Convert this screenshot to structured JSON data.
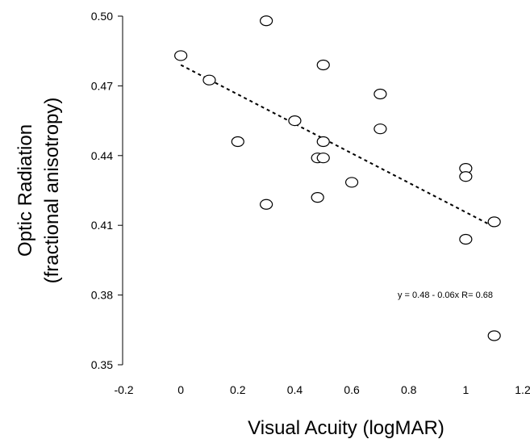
{
  "chart_data": {
    "type": "scatter",
    "xlabel": "Visual Acuity (logMAR)",
    "ylabel_line1": "Optic Radiation",
    "ylabel_line2": "(fractional anisotropy)",
    "xlim": [
      -0.2,
      1.2
    ],
    "ylim": [
      0.35,
      0.5
    ],
    "x_ticks": [
      "-0.2",
      "0",
      "0.2",
      "0.4",
      "0.6",
      "0.8",
      "1",
      "1.2"
    ],
    "y_ticks": [
      "0.35",
      "0.38",
      "0.41",
      "0.44",
      "0.47",
      "0.50"
    ],
    "points": [
      {
        "x": 0.0,
        "y": 0.483
      },
      {
        "x": 0.1,
        "y": 0.4725
      },
      {
        "x": 0.2,
        "y": 0.446
      },
      {
        "x": 0.3,
        "y": 0.498
      },
      {
        "x": 0.3,
        "y": 0.419
      },
      {
        "x": 0.4,
        "y": 0.455
      },
      {
        "x": 0.48,
        "y": 0.439
      },
      {
        "x": 0.48,
        "y": 0.422
      },
      {
        "x": 0.5,
        "y": 0.479
      },
      {
        "x": 0.5,
        "y": 0.446
      },
      {
        "x": 0.5,
        "y": 0.439
      },
      {
        "x": 0.6,
        "y": 0.4285
      },
      {
        "x": 0.7,
        "y": 0.4665
      },
      {
        "x": 0.7,
        "y": 0.4515
      },
      {
        "x": 1.0,
        "y": 0.4345
      },
      {
        "x": 1.0,
        "y": 0.431
      },
      {
        "x": 1.0,
        "y": 0.404
      },
      {
        "x": 1.1,
        "y": 0.4115
      },
      {
        "x": 1.1,
        "y": 0.3625
      }
    ],
    "trendline": {
      "x1": 0.0,
      "y1": 0.479,
      "x2": 1.1,
      "y2": 0.4093
    },
    "annotation": "y = 0.48 - 0.06x   R= 0.68",
    "grid": false,
    "legend": "none"
  }
}
